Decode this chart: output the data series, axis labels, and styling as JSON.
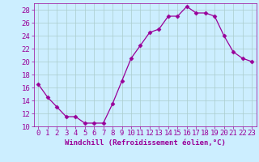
{
  "x": [
    0,
    1,
    2,
    3,
    4,
    5,
    6,
    7,
    8,
    9,
    10,
    11,
    12,
    13,
    14,
    15,
    16,
    17,
    18,
    19,
    20,
    21,
    22,
    23
  ],
  "y": [
    16.5,
    14.5,
    13.0,
    11.5,
    11.5,
    10.5,
    10.5,
    10.5,
    13.5,
    17.0,
    20.5,
    22.5,
    24.5,
    25.0,
    27.0,
    27.0,
    28.5,
    27.5,
    27.5,
    27.0,
    24.0,
    21.5,
    20.5,
    20.0
  ],
  "line_color": "#990099",
  "marker": "D",
  "marker_size": 2.5,
  "bg_color": "#cceeff",
  "grid_color": "#aacccc",
  "xlabel": "Windchill (Refroidissement éolien,°C)",
  "xlim": [
    -0.5,
    23.5
  ],
  "ylim": [
    10,
    29
  ],
  "yticks": [
    10,
    12,
    14,
    16,
    18,
    20,
    22,
    24,
    26,
    28
  ],
  "xticks": [
    0,
    1,
    2,
    3,
    4,
    5,
    6,
    7,
    8,
    9,
    10,
    11,
    12,
    13,
    14,
    15,
    16,
    17,
    18,
    19,
    20,
    21,
    22,
    23
  ],
  "tick_color": "#990099",
  "label_color": "#990099",
  "font_size": 6.5
}
